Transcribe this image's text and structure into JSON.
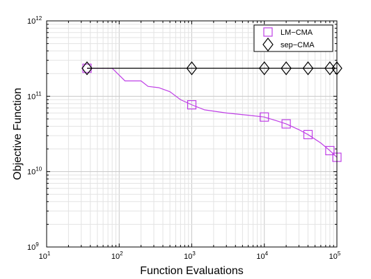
{
  "chart_data": {
    "type": "line",
    "xlabel": "Function Evaluations",
    "ylabel": "Objective Function",
    "xscale": "log",
    "yscale": "log",
    "xlim": [
      10,
      100000
    ],
    "ylim": [
      1000000000,
      1000000000000
    ],
    "x_ticks": [
      {
        "base": "10",
        "exp": "1"
      },
      {
        "base": "10",
        "exp": "2"
      },
      {
        "base": "10",
        "exp": "3"
      },
      {
        "base": "10",
        "exp": "4"
      },
      {
        "base": "10",
        "exp": "5"
      }
    ],
    "y_ticks": [
      {
        "base": "10",
        "exp": "9"
      },
      {
        "base": "10",
        "exp": "10"
      },
      {
        "base": "10",
        "exp": "11"
      },
      {
        "base": "10",
        "exp": "12"
      }
    ],
    "grid": true,
    "legend_position": "top-right",
    "series": [
      {
        "name": "LM−CMA",
        "color": "#bf3fe6",
        "marker": "square",
        "line": [
          [
            36,
            235000000000.0
          ],
          [
            80,
            235000000000.0
          ],
          [
            120,
            160000000000.0
          ],
          [
            200,
            160000000000.0
          ],
          [
            250,
            135000000000.0
          ],
          [
            350,
            130000000000.0
          ],
          [
            500,
            115000000000.0
          ],
          [
            700,
            90000000000.0
          ],
          [
            1000,
            77000000000.0
          ],
          [
            1500,
            66000000000.0
          ],
          [
            3000,
            60000000000.0
          ],
          [
            6000,
            56000000000.0
          ],
          [
            10000,
            53000000000.0
          ],
          [
            15000,
            47000000000.0
          ],
          [
            20000,
            43000000000.0
          ],
          [
            30000,
            36000000000.0
          ],
          [
            40000,
            31000000000.0
          ],
          [
            60000,
            24000000000.0
          ],
          [
            80000,
            19000000000.0
          ],
          [
            100000,
            15500000000.0
          ]
        ],
        "markers": [
          [
            36,
            235000000000.0
          ],
          [
            1000,
            77000000000.0
          ],
          [
            10000,
            53000000000.0
          ],
          [
            20000,
            43000000000.0
          ],
          [
            40000,
            31000000000.0
          ],
          [
            80000,
            19000000000.0
          ],
          [
            100000,
            15500000000.0
          ]
        ]
      },
      {
        "name": "sep−CMA",
        "color": "#000000",
        "marker": "diamond",
        "line": [
          [
            36,
            235000000000.0
          ],
          [
            100000,
            235000000000.0
          ]
        ],
        "markers": [
          [
            36,
            235000000000.0
          ],
          [
            1000,
            235000000000.0
          ],
          [
            10000,
            235000000000.0
          ],
          [
            20000,
            235000000000.0
          ],
          [
            40000,
            235000000000.0
          ],
          [
            80000,
            235000000000.0
          ],
          [
            100000,
            235000000000.0
          ]
        ]
      }
    ]
  }
}
